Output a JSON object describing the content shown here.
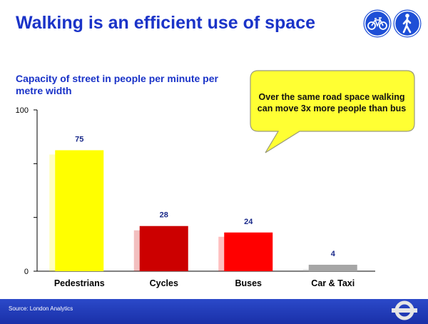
{
  "title": "Walking is an efficient use of space",
  "callout": {
    "line1": "Over the same road space walking",
    "line2": "can move  3x more people than bus"
  },
  "icons": [
    "bicycle-sign-icon",
    "pedestrian-sign-icon",
    "roundel-logo-icon"
  ],
  "source": "Source: London Analytics",
  "colors": {
    "title": "#1a33c8",
    "callout_fill": "#ffff33",
    "footer": "#2238b8"
  },
  "chart_data": {
    "type": "bar",
    "title": "Capacity of street in people per minute per metre width",
    "categories": [
      "Pedestrians",
      "Cycles",
      "Buses",
      "Car & Taxi"
    ],
    "values": [
      75,
      28,
      24,
      4
    ],
    "colors": [
      "#ffff00",
      "#cc0000",
      "#ff0000",
      "#a6a6a6"
    ],
    "ylim": [
      0,
      100
    ],
    "yticks": [
      0,
      100
    ],
    "xlabel": "",
    "ylabel": "",
    "grid": false,
    "legend": "none"
  }
}
